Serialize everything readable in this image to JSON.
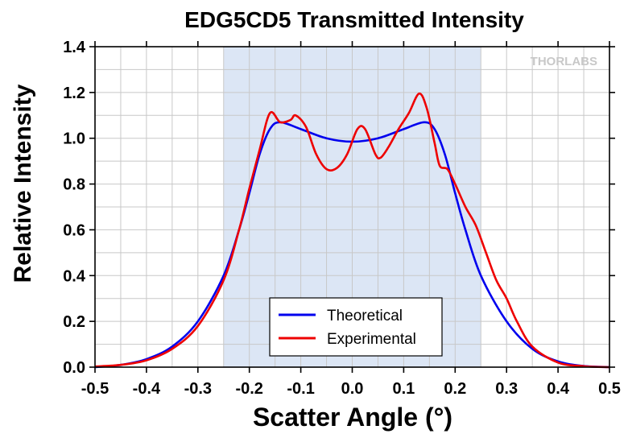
{
  "chart_data": {
    "type": "line",
    "title": "EDG5CD5 Transmitted Intensity",
    "xlabel": "Scatter Angle (°)",
    "ylabel": "Relative Intensity",
    "xlim": [
      -0.5,
      0.5
    ],
    "ylim": [
      0,
      1.4
    ],
    "x_ticks": [
      "-0.5",
      "-0.4",
      "-0.3",
      "-0.2",
      "-0.1",
      "0.0",
      "0.1",
      "0.2",
      "0.3",
      "0.4",
      "0.5"
    ],
    "y_ticks": [
      "0.0",
      "0.2",
      "0.4",
      "0.6",
      "0.8",
      "1.0",
      "1.2",
      "1.4"
    ],
    "grid": true,
    "shaded_region": {
      "x_from": -0.25,
      "x_to": 0.25,
      "color": "#dce6f5"
    },
    "watermark": "THORLABS",
    "legend_position": "bottom-center",
    "series": [
      {
        "name": "Theoretical",
        "color": "#0000ee",
        "points": [
          [
            -0.5,
            0.0
          ],
          [
            -0.45,
            0.01
          ],
          [
            -0.4,
            0.035
          ],
          [
            -0.35,
            0.09
          ],
          [
            -0.3,
            0.2
          ],
          [
            -0.25,
            0.4
          ],
          [
            -0.22,
            0.6
          ],
          [
            -0.2,
            0.76
          ],
          [
            -0.18,
            0.93
          ],
          [
            -0.16,
            1.04
          ],
          [
            -0.14,
            1.07
          ],
          [
            -0.1,
            1.04
          ],
          [
            -0.05,
            1.0
          ],
          [
            0.0,
            0.985
          ],
          [
            0.05,
            1.0
          ],
          [
            0.1,
            1.04
          ],
          [
            0.14,
            1.07
          ],
          [
            0.16,
            1.04
          ],
          [
            0.18,
            0.93
          ],
          [
            0.2,
            0.76
          ],
          [
            0.22,
            0.6
          ],
          [
            0.25,
            0.4
          ],
          [
            0.3,
            0.2
          ],
          [
            0.35,
            0.08
          ],
          [
            0.4,
            0.025
          ],
          [
            0.45,
            0.005
          ],
          [
            0.5,
            0.0
          ]
        ]
      },
      {
        "name": "Experimental",
        "color": "#ee0000",
        "points": [
          [
            -0.5,
            0.003
          ],
          [
            -0.45,
            0.01
          ],
          [
            -0.4,
            0.03
          ],
          [
            -0.35,
            0.08
          ],
          [
            -0.3,
            0.18
          ],
          [
            -0.25,
            0.38
          ],
          [
            -0.22,
            0.6
          ],
          [
            -0.2,
            0.78
          ],
          [
            -0.18,
            0.95
          ],
          [
            -0.16,
            1.11
          ],
          [
            -0.14,
            1.07
          ],
          [
            -0.12,
            1.08
          ],
          [
            -0.11,
            1.1
          ],
          [
            -0.09,
            1.05
          ],
          [
            -0.07,
            0.93
          ],
          [
            -0.05,
            0.865
          ],
          [
            -0.03,
            0.87
          ],
          [
            -0.01,
            0.93
          ],
          [
            0.01,
            1.04
          ],
          [
            0.025,
            1.04
          ],
          [
            0.045,
            0.93
          ],
          [
            0.055,
            0.915
          ],
          [
            0.07,
            0.96
          ],
          [
            0.09,
            1.04
          ],
          [
            0.11,
            1.11
          ],
          [
            0.13,
            1.195
          ],
          [
            0.145,
            1.13
          ],
          [
            0.16,
            0.98
          ],
          [
            0.17,
            0.88
          ],
          [
            0.185,
            0.865
          ],
          [
            0.2,
            0.8
          ],
          [
            0.22,
            0.7
          ],
          [
            0.24,
            0.62
          ],
          [
            0.26,
            0.5
          ],
          [
            0.28,
            0.38
          ],
          [
            0.3,
            0.3
          ],
          [
            0.32,
            0.2
          ],
          [
            0.35,
            0.09
          ],
          [
            0.4,
            0.02
          ],
          [
            0.45,
            0.004
          ],
          [
            0.5,
            0.0
          ]
        ]
      }
    ]
  }
}
